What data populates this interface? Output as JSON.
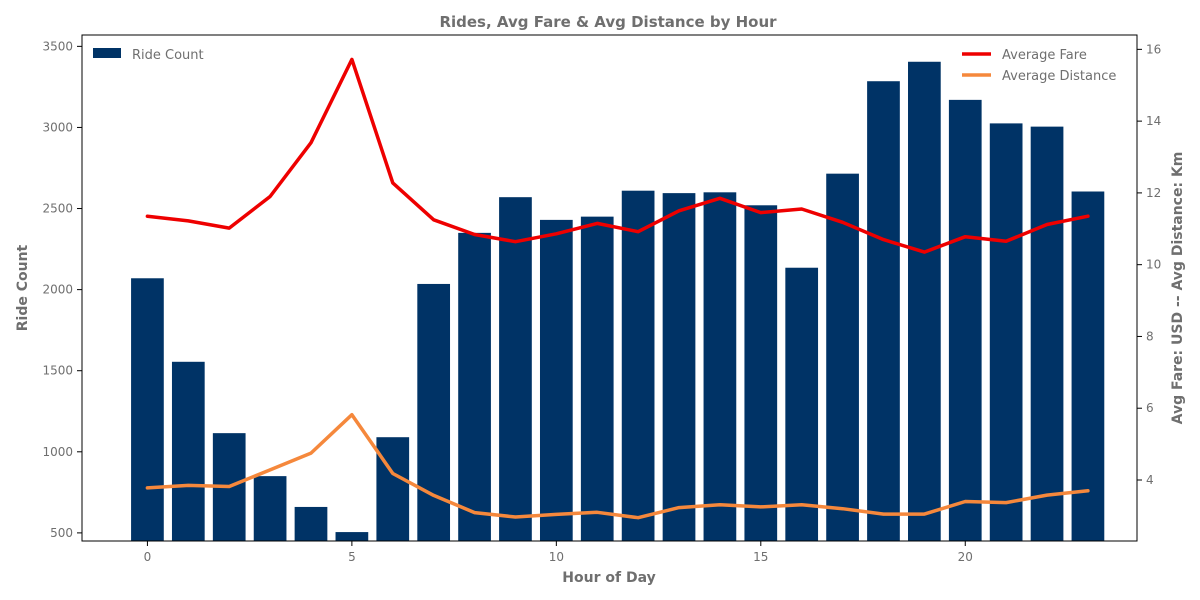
{
  "chart_data": {
    "type": "bar",
    "title": "Rides, Avg Fare & Avg Distance by Hour",
    "xlabel": "Hour of Day",
    "ylabel": "Ride Count",
    "y2label": "Avg Fare: USD -- Avg Distance: Km",
    "x": [
      0,
      1,
      2,
      3,
      4,
      5,
      6,
      7,
      8,
      9,
      10,
      11,
      12,
      13,
      14,
      15,
      16,
      17,
      18,
      19,
      20,
      21,
      22,
      23
    ],
    "xlim": [
      -1.6,
      24.2
    ],
    "ylim": [
      450,
      3570
    ],
    "y2lim": [
      2.3,
      16.4
    ],
    "xticks": [
      0,
      5,
      10,
      15,
      20
    ],
    "yticks": [
      500,
      1000,
      1500,
      2000,
      2500,
      3000,
      3500
    ],
    "y2ticks": [
      4,
      6,
      8,
      10,
      12,
      14,
      16
    ],
    "grid": false,
    "bars": {
      "name": "Ride Count",
      "color": "#003366",
      "axis": "left",
      "values": [
        2070,
        1555,
        1115,
        850,
        660,
        505,
        1090,
        2035,
        2350,
        2570,
        2430,
        2450,
        2610,
        2595,
        2600,
        2520,
        2135,
        2715,
        3285,
        3405,
        3170,
        3025,
        3005,
        2605
      ]
    },
    "series": [
      {
        "name": "Average Fare",
        "type": "line",
        "axis": "right",
        "color": "#ee0000",
        "values": [
          11.35,
          11.22,
          11.02,
          11.9,
          13.4,
          15.72,
          12.28,
          11.25,
          10.84,
          10.64,
          10.86,
          11.15,
          10.92,
          11.5,
          11.85,
          11.45,
          11.55,
          11.18,
          10.7,
          10.35,
          10.78,
          10.65,
          11.12,
          11.35
        ]
      },
      {
        "name": "Average Distance",
        "type": "line",
        "axis": "right",
        "color": "#f5883c",
        "values": [
          3.78,
          3.85,
          3.82,
          4.28,
          4.75,
          5.82,
          4.18,
          3.57,
          3.09,
          2.97,
          3.04,
          3.1,
          2.95,
          3.23,
          3.31,
          3.25,
          3.31,
          3.2,
          3.05,
          3.05,
          3.4,
          3.37,
          3.58,
          3.7
        ]
      }
    ],
    "legend_left": {
      "placement": "top-left",
      "entries": [
        "Ride Count"
      ]
    },
    "legend_right": {
      "placement": "top-right",
      "entries": [
        "Average Fare",
        "Average Distance"
      ]
    }
  }
}
